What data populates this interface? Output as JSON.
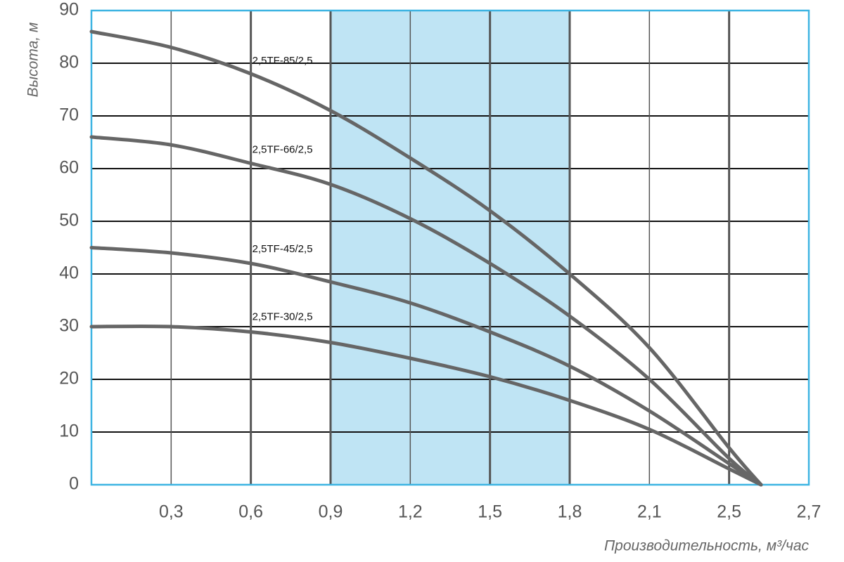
{
  "chart_data": {
    "type": "line",
    "y_label": "Высота, м",
    "x_label": "Производительность, м³/час",
    "x": [
      0,
      0.3,
      0.6,
      0.9,
      1.2,
      1.5,
      1.8,
      2.1,
      2.5,
      2.58
    ],
    "series": [
      {
        "name": "2,5TF-85/2,5",
        "color": "#666666",
        "values": [
          86,
          83,
          78,
          71,
          62,
          52,
          40,
          26,
          7,
          0
        ]
      },
      {
        "name": "2,5TF-66/2,5",
        "color": "#666666",
        "values": [
          66,
          64.5,
          61,
          57,
          50.5,
          42,
          32,
          20,
          5,
          0
        ]
      },
      {
        "name": "2,5TF-45/2,5",
        "color": "#666666",
        "values": [
          45,
          44,
          42,
          38.5,
          34.5,
          29,
          22.5,
          14,
          4,
          0
        ]
      },
      {
        "name": "2,5TF-30/2,5",
        "color": "#666666",
        "values": [
          30,
          30,
          29,
          27,
          24,
          20.5,
          16,
          10.5,
          3,
          0
        ]
      }
    ],
    "shaded_range": [
      0.9,
      1.8
    ],
    "shaded_color": "#bfe4f4",
    "xlim": [
      0,
      2.7
    ],
    "xticks": [
      {
        "value": 0.3,
        "label": "0,3"
      },
      {
        "value": 0.6,
        "label": "0,6"
      },
      {
        "value": 0.9,
        "label": "0,9"
      },
      {
        "value": 1.2,
        "label": "1,2"
      },
      {
        "value": 1.5,
        "label": "1,5"
      },
      {
        "value": 1.8,
        "label": "1,8"
      },
      {
        "value": 2.1,
        "label": "2,1"
      },
      {
        "value": 2.5,
        "label": "2,5"
      },
      {
        "value": 2.7,
        "label": "2,7"
      }
    ],
    "ylim": [
      0,
      90
    ],
    "yticks": [
      0,
      10,
      20,
      30,
      40,
      50,
      60,
      70,
      80,
      90
    ],
    "grid": true,
    "frame_color": "#3db4e2"
  }
}
